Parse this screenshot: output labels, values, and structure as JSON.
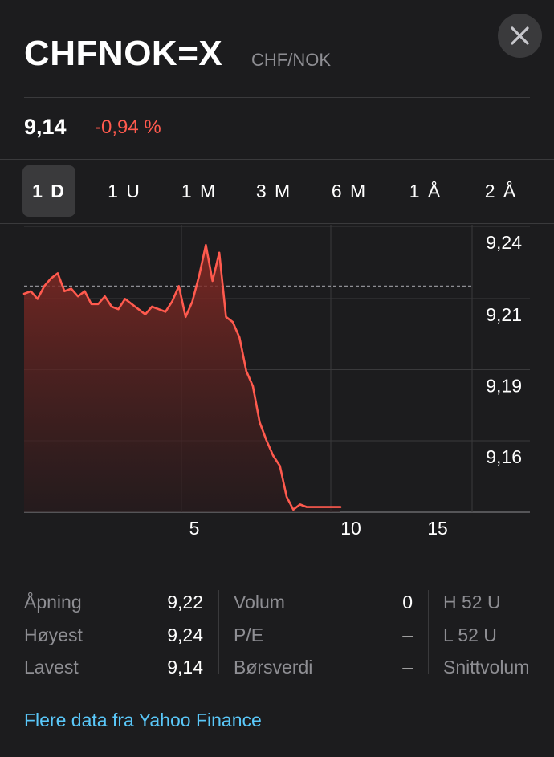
{
  "header": {
    "symbol": "CHFNOK=X",
    "subtitle": "CHF/NOK"
  },
  "quote": {
    "price": "9,14",
    "change": "-0,94 %"
  },
  "tabs": [
    {
      "label": "1 D",
      "active": true
    },
    {
      "label": "1 U",
      "active": false
    },
    {
      "label": "1 M",
      "active": false
    },
    {
      "label": "3 M",
      "active": false
    },
    {
      "label": "6 M",
      "active": false
    },
    {
      "label": "1 Å",
      "active": false
    },
    {
      "label": "2 Å",
      "active": false
    }
  ],
  "chart_data": {
    "type": "area",
    "x_tick_labels": [
      "5",
      "10",
      "15"
    ],
    "y_tick_labels": [
      "9,24",
      "9,21",
      "9,19",
      "9,16"
    ],
    "y_ticks": [
      9.24,
      9.21,
      9.19,
      9.16
    ],
    "ylim": [
      9.14,
      9.25
    ],
    "previous_close": 9.228,
    "line_color": "#ff5a4e",
    "series": [
      {
        "x": [
          0,
          0.25,
          0.5,
          0.75,
          1,
          1.25,
          1.5,
          1.75,
          2,
          2.25,
          2.5,
          2.75,
          3,
          3.25,
          3.5,
          3.75,
          4,
          4.25,
          4.5,
          4.75,
          5,
          5.25,
          5.5,
          5.75,
          6,
          6.25,
          6.5,
          6.75,
          7,
          7.25,
          7.5,
          7.75,
          8,
          8.25,
          8.5,
          8.75,
          9,
          9.25,
          9.5,
          9.75,
          10,
          10.25,
          10.5,
          10.75,
          11,
          11.25,
          11.5,
          11.75
        ],
        "values": [
          9.225,
          9.226,
          9.223,
          9.228,
          9.231,
          9.233,
          9.226,
          9.227,
          9.224,
          9.226,
          9.221,
          9.221,
          9.224,
          9.22,
          9.219,
          9.223,
          9.221,
          9.219,
          9.217,
          9.22,
          9.219,
          9.218,
          9.222,
          9.228,
          9.216,
          9.222,
          9.232,
          9.244,
          9.23,
          9.241,
          9.216,
          9.214,
          9.208,
          9.195,
          9.189,
          9.175,
          9.168,
          9.162,
          9.158,
          9.146,
          9.141,
          9.143,
          9.142,
          9.142,
          9.142,
          9.142,
          9.142,
          9.142
        ]
      }
    ]
  },
  "stats": {
    "col1": [
      {
        "label": "Åpning",
        "value": "9,22"
      },
      {
        "label": "Høyest",
        "value": "9,24"
      },
      {
        "label": "Lavest",
        "value": "9,14"
      }
    ],
    "col2": [
      {
        "label": "Volum",
        "value": "0"
      },
      {
        "label": "P/E",
        "value": "–"
      },
      {
        "label": "Børsverdi",
        "value": "–"
      }
    ],
    "col3": [
      {
        "label": "H 52 U"
      },
      {
        "label": "L 52 U"
      },
      {
        "label": "Snittvolum"
      }
    ]
  },
  "footer": {
    "link_text": "Flere data fra Yahoo Finance"
  }
}
